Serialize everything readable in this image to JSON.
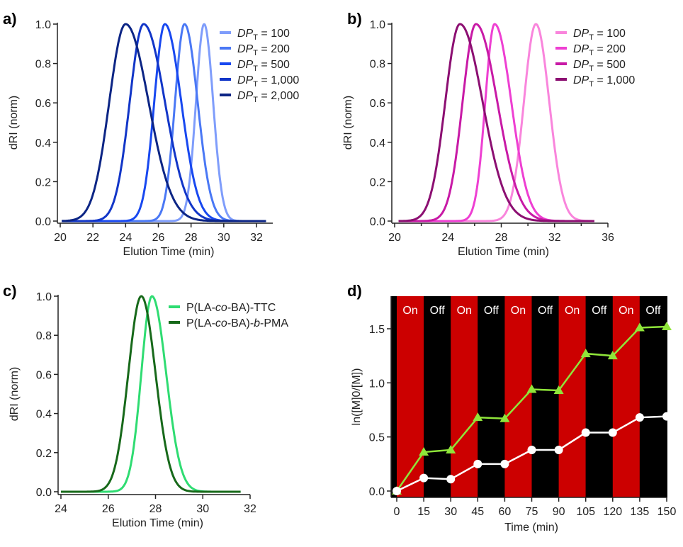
{
  "chart_data": [
    {
      "panel": "a)",
      "type": "line",
      "xlabel": "Elution Time (min)",
      "ylabel": "dRI (norm)",
      "xlim": [
        20,
        32.6
      ],
      "ylim": [
        0,
        1.0
      ],
      "xticks": [
        "20",
        "22",
        "24",
        "26",
        "28",
        "30",
        "32"
      ],
      "yticks": [
        "0.0",
        "0.2",
        "0.4",
        "0.6",
        "0.8",
        "1.0"
      ],
      "legend_position": "top-right",
      "x_range": [
        20.1,
        32.6
      ],
      "series": [
        {
          "name": "DP_T = 100",
          "label_pre": "DP",
          "label_sub": "T",
          "label_post": " = 100",
          "color": "#7f9dfb",
          "peak": 28.8,
          "sigma_left": 0.5,
          "sigma_right": 0.55
        },
        {
          "name": "DP_T = 200",
          "label_pre": "DP",
          "label_sub": "T",
          "label_post": " = 200",
          "color": "#4a78f5",
          "peak": 27.6,
          "sigma_left": 0.58,
          "sigma_right": 0.8
        },
        {
          "name": "DP_T = 500",
          "label_pre": "DP",
          "label_sub": "T",
          "label_post": " = 500",
          "color": "#1848f0",
          "peak": 26.4,
          "sigma_left": 0.65,
          "sigma_right": 1.0
        },
        {
          "name": "DP_T = 1,000",
          "label_pre": "DP",
          "label_sub": "T",
          "label_post": " = 1,000",
          "color": "#1236c8",
          "peak": 25.1,
          "sigma_left": 0.85,
          "sigma_right": 1.3
        },
        {
          "name": "DP_T = 2,000",
          "label_pre": "DP",
          "label_sub": "T",
          "label_post": " = 2,000",
          "color": "#0c2585",
          "peak": 24.0,
          "sigma_left": 1.0,
          "sigma_right": 1.4
        }
      ]
    },
    {
      "panel": "b)",
      "type": "line",
      "xlabel": "Elution Time (min)",
      "ylabel": "dRI (norm)",
      "xlim": [
        20,
        36
      ],
      "ylim": [
        0,
        1.0
      ],
      "xticks": [
        "20",
        "24",
        "28",
        "32",
        "36"
      ],
      "yticks": [
        "0.0",
        "0.2",
        "0.4",
        "0.6",
        "0.8",
        "1.0"
      ],
      "legend_position": "top-right",
      "x_range": [
        20.3,
        35.0
      ],
      "series": [
        {
          "name": "DP_T = 100",
          "label_pre": "DP",
          "label_sub": "T",
          "label_post": " = 100",
          "color": "#f985dc",
          "peak": 30.6,
          "sigma_left": 0.9,
          "sigma_right": 1.0
        },
        {
          "name": "DP_T = 200",
          "label_pre": "DP",
          "label_sub": "T",
          "label_post": " = 200",
          "color": "#ee3fd2",
          "peak": 27.5,
          "sigma_left": 0.7,
          "sigma_right": 1.25
        },
        {
          "name": "DP_T = 500",
          "label_pre": "DP",
          "label_sub": "T",
          "label_post": " = 500",
          "color": "#c81aa6",
          "peak": 26.1,
          "sigma_left": 1.0,
          "sigma_right": 1.6
        },
        {
          "name": "DP_T = 1,000",
          "label_pre": "DP",
          "label_sub": "T",
          "label_post": " = 1,000",
          "color": "#8c0f72",
          "peak": 24.9,
          "sigma_left": 1.1,
          "sigma_right": 1.7
        }
      ]
    },
    {
      "panel": "c)",
      "type": "line",
      "xlabel": "Elution Time (min)",
      "ylabel": "dRI (norm)",
      "xlim": [
        24,
        32
      ],
      "ylim": [
        0,
        1.0
      ],
      "xticks": [
        "24",
        "26",
        "28",
        "30",
        "32"
      ],
      "yticks": [
        "0.0",
        "0.2",
        "0.4",
        "0.6",
        "0.8",
        "1.0"
      ],
      "legend_position": "top-right",
      "x_range": [
        24.0,
        31.6
      ],
      "series": [
        {
          "name": "P(LA-co-BA)-TTC",
          "label_pre": "P(LA-",
          "label_it": "co",
          "label_mid": "-BA)-TTC",
          "label_it2": "",
          "label_post": "",
          "color": "#2fdc72",
          "peak": 27.85,
          "sigma_left": 0.45,
          "sigma_right": 0.6
        },
        {
          "name": "P(LA-co-BA)-b-PMA",
          "label_pre": "P(LA-",
          "label_it": "co",
          "label_mid": "-BA)-",
          "label_it2": "b",
          "label_post": "-PMA",
          "color": "#17691a",
          "peak": 27.4,
          "sigma_left": 0.55,
          "sigma_right": 0.6
        }
      ]
    },
    {
      "panel": "d)",
      "type": "line",
      "xlabel": "Time (min)",
      "ylabel": "ln([M]0/[M])",
      "ylabel_pre": "ln([M]",
      "ylabel_sub": "0",
      "ylabel_post": "/[M])",
      "xlim": [
        -3,
        150
      ],
      "ylim": [
        -0.05,
        1.8
      ],
      "xticks": [
        "0",
        "15",
        "30",
        "45",
        "60",
        "75",
        "90",
        "105",
        "120",
        "135",
        "150"
      ],
      "yticks": [
        "0.0",
        "0.5",
        "1.0",
        "1.5"
      ],
      "bands": [
        {
          "label": "On",
          "from": 0,
          "to": 15,
          "color": "#cc0000"
        },
        {
          "label": "Off",
          "from": 15,
          "to": 30,
          "color": "#000000"
        },
        {
          "label": "On",
          "from": 30,
          "to": 45,
          "color": "#cc0000"
        },
        {
          "label": "Off",
          "from": 45,
          "to": 60,
          "color": "#000000"
        },
        {
          "label": "On",
          "from": 60,
          "to": 75,
          "color": "#cc0000"
        },
        {
          "label": "Off",
          "from": 75,
          "to": 90,
          "color": "#000000"
        },
        {
          "label": "On",
          "from": 90,
          "to": 105,
          "color": "#cc0000"
        },
        {
          "label": "Off",
          "from": 105,
          "to": 120,
          "color": "#000000"
        },
        {
          "label": "On",
          "from": 120,
          "to": 135,
          "color": "#cc0000"
        },
        {
          "label": "Off",
          "from": 135,
          "to": 150,
          "color": "#000000"
        }
      ],
      "x": [
        0,
        15,
        30,
        45,
        60,
        75,
        90,
        105,
        120,
        135,
        150
      ],
      "series": [
        {
          "name": "triangles",
          "marker": "triangle",
          "color": "#8fe53a",
          "values": [
            0,
            0.36,
            0.38,
            0.68,
            0.67,
            0.94,
            0.93,
            1.27,
            1.25,
            1.51,
            1.52
          ]
        },
        {
          "name": "circles",
          "marker": "circle",
          "color": "#ffffff",
          "values": [
            0,
            0.12,
            0.11,
            0.25,
            0.25,
            0.38,
            0.38,
            0.54,
            0.54,
            0.68,
            0.69
          ]
        }
      ]
    }
  ]
}
